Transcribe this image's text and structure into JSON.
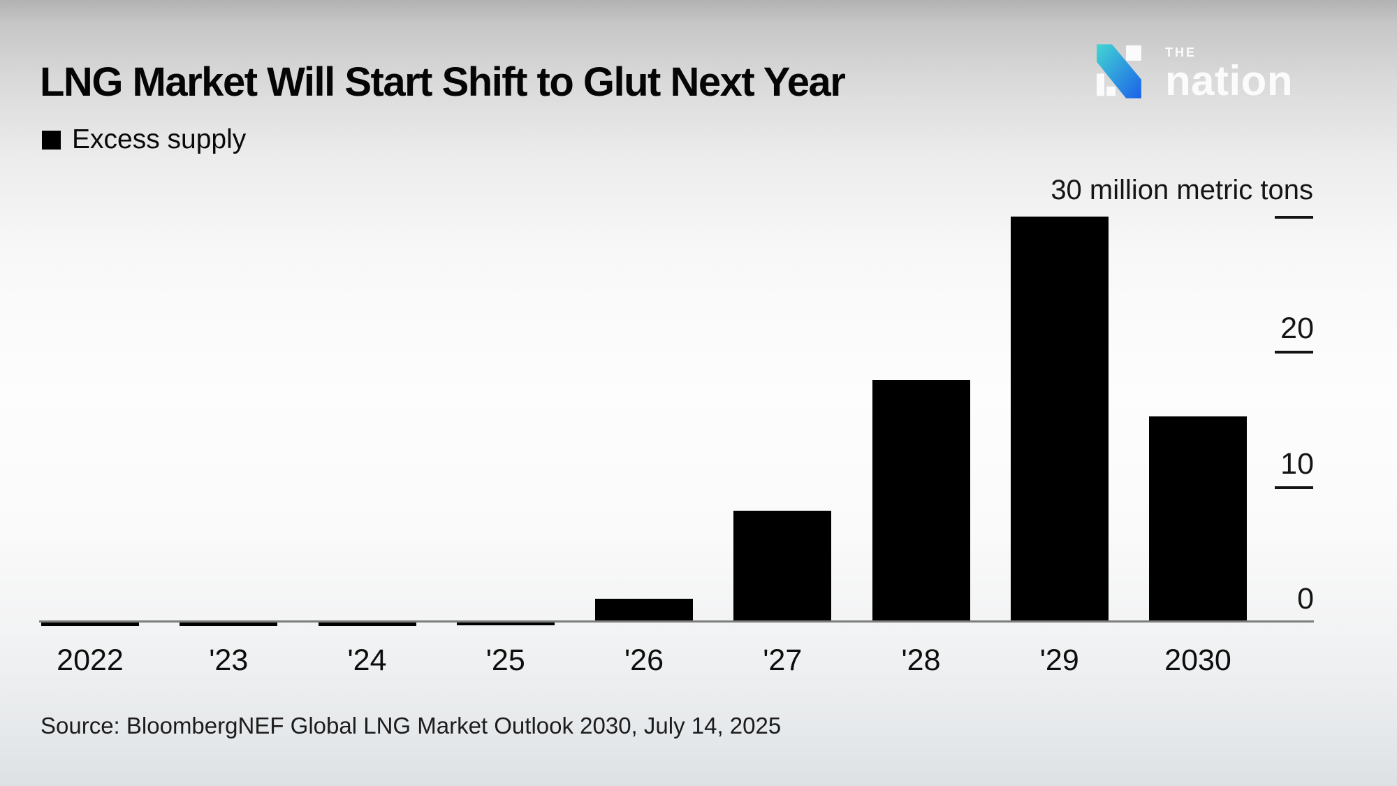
{
  "header": {
    "title": "LNG Market Will Start Shift to Glut Next Year",
    "legend_label": "Excess supply",
    "legend_color": "#000000"
  },
  "logo": {
    "the": "THE",
    "name": "nation",
    "teal": "#43d5d2",
    "blue": "#1b62e9",
    "white": "#fbfbfb"
  },
  "chart_data": {
    "type": "bar",
    "title": "LNG Market Will Start Shift to Glut Next Year",
    "series_label": "Excess supply",
    "unit_label": "30 million metric tons",
    "categories": [
      "2022",
      "'23",
      "'24",
      "'25",
      "'26",
      "'27",
      "'28",
      "'29",
      "2030"
    ],
    "values": [
      -0.3,
      -0.3,
      -0.3,
      -0.25,
      1.7,
      8.2,
      17.9,
      30,
      15.2
    ],
    "bar_color": "#000000",
    "ylabel": "million metric tons",
    "ylim": [
      0,
      30
    ],
    "yticks": [
      {
        "value": 30,
        "label": "30 million metric tons"
      },
      {
        "value": 20,
        "label": "20"
      },
      {
        "value": 10,
        "label": "10"
      },
      {
        "value": 0,
        "label": "0"
      }
    ],
    "axis_side": "right",
    "grid": false,
    "legend_position": "top-left"
  },
  "source": "Source: BloombergNEF Global LNG Market Outlook 2030, July 14, 2025"
}
